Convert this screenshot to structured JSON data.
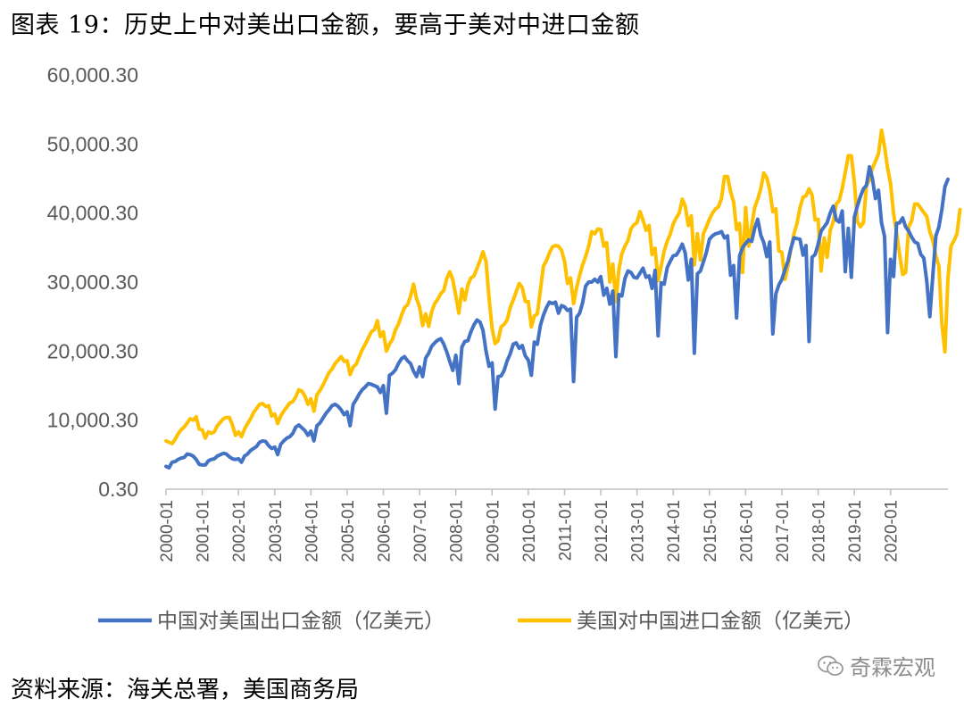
{
  "title": "图表 19：历史上中对美出口金额，要高于美对中进口金额",
  "source": "资料来源：海关总署，美国商务局",
  "watermark": "奇霖宏观",
  "colors": {
    "series1": "#4472C4",
    "series2": "#FFC000",
    "axis": "#BFBFBF",
    "text": "#595959"
  },
  "chart_data": {
    "type": "line",
    "title": "",
    "xlabel": "",
    "ylabel": "",
    "ylim": [
      0.3,
      60000.3
    ],
    "yticks": [
      "0.30",
      "10,000.30",
      "20,000.30",
      "30,000.30",
      "40,000.30",
      "50,000.30",
      "60,000.30"
    ],
    "xticks": [
      "2000-01",
      "2001-01",
      "2002-01",
      "2003-01",
      "2004-01",
      "2005-01",
      "2006-01",
      "2007-01",
      "2008-01",
      "2009-01",
      "2010-01",
      "2011-01",
      "2012-01",
      "2013-01",
      "2014-01",
      "2015-01",
      "2016-01",
      "2017-01",
      "2018-01",
      "2019-01",
      "2020-01"
    ],
    "grid": false,
    "legend": "bottom",
    "x_start": "2000-01",
    "series": [
      {
        "name": "中国对美国出口金额（亿美元）",
        "color": "#4472C4",
        "values": [
          3300,
          3100,
          3900,
          4000,
          4300,
          4500,
          4600,
          5100,
          5000,
          4800,
          4300,
          3600,
          3500,
          3500,
          4100,
          4300,
          4400,
          4800,
          5000,
          5200,
          5100,
          4700,
          4400,
          4300,
          4400,
          3900,
          4800,
          5100,
          5600,
          5900,
          6200,
          6800,
          7000,
          6900,
          6300,
          5900,
          6100,
          5000,
          6500,
          7000,
          7400,
          7600,
          8100,
          9000,
          9300,
          8900,
          8500,
          7800,
          8400,
          7000,
          9200,
          9600,
          10300,
          11000,
          11500,
          12100,
          12300,
          12000,
          11500,
          10800,
          11200,
          9200,
          12300,
          13000,
          13800,
          14400,
          14800,
          15300,
          15200,
          15000,
          14800,
          14000,
          15000,
          11000,
          16500,
          16800,
          17300,
          18200,
          18900,
          19200,
          18600,
          18200,
          17100,
          16300,
          17700,
          16300,
          19000,
          19700,
          20700,
          21200,
          21600,
          21800,
          21000,
          19900,
          18500,
          17200,
          19400,
          15300,
          20600,
          21400,
          21500,
          22800,
          23800,
          24500,
          24200,
          23000,
          20000,
          17800,
          18300,
          11600,
          16300,
          16400,
          17200,
          18600,
          19600,
          21000,
          21200,
          20400,
          20800,
          19300,
          18700,
          16500,
          21300,
          21000,
          23700,
          25200,
          26300,
          27100,
          26900,
          27100,
          25500,
          26600,
          26400,
          25900,
          26100,
          15600,
          24900,
          25500,
          27000,
          29400,
          30000,
          30000,
          30400,
          30000,
          30800,
          28100,
          29100,
          26800,
          28700,
          19200,
          28200,
          28000,
          30500,
          31600,
          31400,
          30700,
          30600,
          31300,
          32000,
          30700,
          30900,
          29100,
          31700,
          22200,
          29900,
          29700,
          32100,
          33000,
          33800,
          33900,
          34600,
          35500,
          34200,
          30300,
          33300,
          19700,
          31200,
          31600,
          32900,
          34300,
          36200,
          36700,
          37000,
          37100,
          37300,
          36400,
          36700,
          31000,
          32400,
          24800,
          33800,
          35000,
          35600,
          36100,
          35900,
          37800,
          39100,
          36800,
          35700,
          33700,
          35800,
          22500,
          28300,
          29600,
          30400,
          31800,
          33000,
          34900,
          36400,
          36300,
          36200,
          33900,
          35300,
          21400,
          33600,
          34000,
          35500,
          37400,
          38000,
          38600,
          40000,
          41000,
          39000,
          38700,
          40300,
          31500,
          37800,
          30700,
          39400,
          41000,
          42400,
          43500,
          44000,
          46700,
          45000,
          42100,
          43300,
          38600,
          36600,
          22700,
          33300,
          30800,
          38500,
          38600,
          39300,
          38000,
          37400,
          36500,
          35800,
          35600,
          34000,
          33500,
          30100,
          25000,
          31000,
          36700,
          38000,
          40500,
          43800,
          44900
        ]
      },
      {
        "name": "美国对中国进口金额（亿美元）",
        "color": "#FFC000",
        "values": [
          7000,
          6800,
          6600,
          7200,
          8000,
          8600,
          9000,
          9600,
          10200,
          10000,
          10500,
          8700,
          8600,
          7400,
          8300,
          8100,
          8300,
          9200,
          9700,
          10200,
          10400,
          10400,
          9300,
          7800,
          8300,
          7600,
          8700,
          9500,
          10200,
          11100,
          11700,
          12300,
          12400,
          12000,
          12100,
          10600,
          10900,
          9500,
          10600,
          11300,
          11900,
          12500,
          12700,
          13400,
          14400,
          14200,
          13500,
          12300,
          13100,
          11300,
          13700,
          14300,
          15100,
          16000,
          16900,
          17400,
          18200,
          18700,
          19200,
          18500,
          18600,
          16600,
          17700,
          18100,
          19200,
          20200,
          21000,
          21900,
          22800,
          23100,
          24400,
          22100,
          22800,
          20000,
          21000,
          21700,
          23100,
          23900,
          25200,
          26300,
          26700,
          28000,
          29700,
          27600,
          26400,
          23700,
          25400,
          23600,
          25700,
          26900,
          27500,
          28300,
          28800,
          30500,
          31500,
          30300,
          28000,
          25500,
          29000,
          27400,
          29600,
          30600,
          30900,
          32000,
          33100,
          34400,
          33000,
          27700,
          23300,
          21100,
          21500,
          23500,
          23900,
          24500,
          26300,
          27400,
          28600,
          29800,
          29200,
          27200,
          27200,
          23500,
          25100,
          25400,
          28800,
          32300,
          33100,
          34200,
          35100,
          35300,
          35200,
          34600,
          33000,
          29800,
          30600,
          26900,
          29200,
          31000,
          32500,
          33700,
          35200,
          37300,
          37000,
          37700,
          37600,
          35200,
          35700,
          30000,
          32600,
          27200,
          31800,
          34100,
          35200,
          36000,
          37700,
          38300,
          38600,
          40200,
          39000,
          37500,
          38200,
          34000,
          34900,
          30200,
          32300,
          34500,
          35900,
          36900,
          38400,
          39300,
          40000,
          42000,
          41000,
          38200,
          39600,
          32500,
          37000,
          33200,
          37000,
          38000,
          39100,
          40000,
          40600,
          40900,
          42100,
          45300,
          45300,
          43100,
          41600,
          37600,
          38500,
          31400,
          40800,
          35200,
          38200,
          40800,
          42000,
          43500,
          45800,
          45100,
          43300,
          40200,
          40600,
          34500,
          34300,
          30400,
          32300,
          34800,
          37000,
          38500,
          40800,
          42300,
          42500,
          43500,
          42600,
          39000,
          39100,
          31600,
          36400,
          33600,
          37500,
          38700,
          41300,
          41800,
          43600,
          45900,
          48300,
          48300,
          44400,
          38800,
          38000,
          38600,
          44000,
          44800,
          46500,
          47500,
          48600,
          52000,
          49600,
          46500,
          44300,
          39900,
          37100,
          34000,
          31100,
          31400,
          38000,
          38900,
          41300,
          41300,
          40700,
          40100,
          39500,
          37300,
          36000,
          33800,
          32300,
          24000,
          19900,
          30500,
          35200,
          36000,
          37000,
          40500
        ]
      }
    ]
  }
}
